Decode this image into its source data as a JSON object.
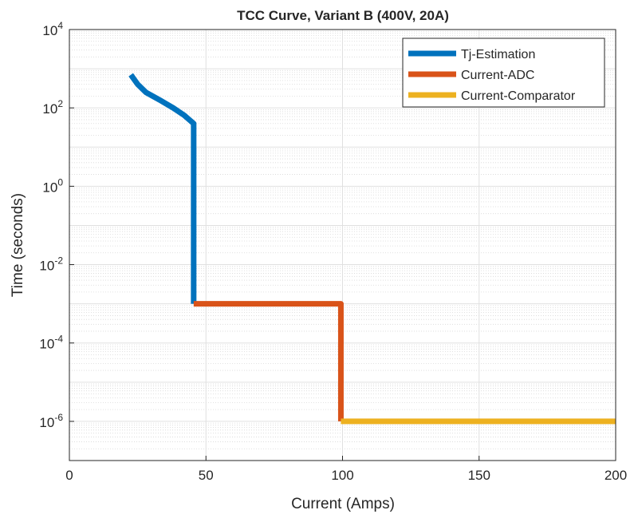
{
  "chart_data": {
    "type": "line",
    "title": "TCC Curve, Variant B (400V, 20A)",
    "xlabel": "Current (Amps)",
    "ylabel": "Time (seconds)",
    "xlim": [
      0,
      200
    ],
    "ylim": [
      1e-07,
      10000
    ],
    "yscale": "log",
    "grid": "on (major and minor)",
    "legend_position": "top-right",
    "xticks": [
      0,
      50,
      100,
      150,
      200
    ],
    "xtick_labels": [
      "0",
      "50",
      "100",
      "150",
      "200"
    ],
    "yticks": [
      1e-06,
      0.0001,
      0.01,
      1,
      100,
      10000
    ],
    "ytick_labels": [
      {
        "base": "10",
        "exp": "-6"
      },
      {
        "base": "10",
        "exp": "-4"
      },
      {
        "base": "10",
        "exp": "-2"
      },
      {
        "base": "10",
        "exp": "0"
      },
      {
        "base": "10",
        "exp": "2"
      },
      {
        "base": "10",
        "exp": "4"
      }
    ],
    "series": [
      {
        "name": "Tj-Estimation",
        "color": "#0072BD",
        "x": [
          22.5,
          25,
          28,
          33,
          38,
          42,
          45.5,
          45.5
        ],
        "y": [
          700,
          400,
          250,
          160,
          100,
          65,
          40,
          0.001
        ]
      },
      {
        "name": "Current-ADC",
        "color": "#D95319",
        "x": [
          45.5,
          99.4,
          99.4
        ],
        "y": [
          0.001,
          0.001,
          1e-06
        ]
      },
      {
        "name": "Current-Comparator",
        "color": "#EDB120",
        "x": [
          99.4,
          200
        ],
        "y": [
          1e-06,
          1e-06
        ]
      }
    ]
  }
}
